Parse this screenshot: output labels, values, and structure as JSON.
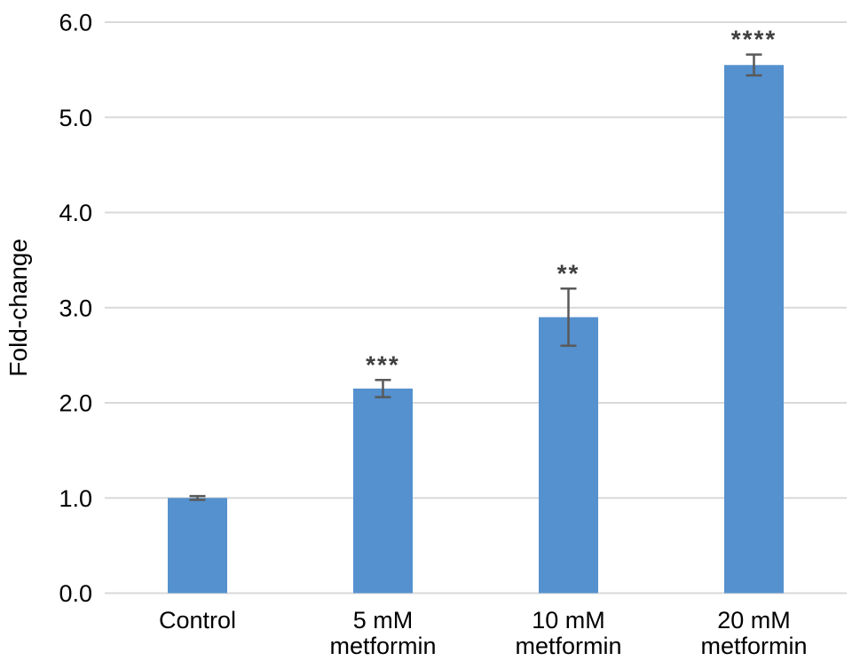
{
  "figure": {
    "background": "#ffffff"
  },
  "chart_data": {
    "type": "bar",
    "title": "",
    "xlabel": "",
    "ylabel": "Fold-change",
    "categories": [
      "Control",
      "5 mM\nmetformin",
      "10 mM\nmetformin",
      "20 mM\nmetformin"
    ],
    "values": [
      1.0,
      2.15,
      2.9,
      5.55
    ],
    "error_bars": [
      0.02,
      0.09,
      0.3,
      0.11
    ],
    "significance": [
      "",
      "***",
      "**",
      "****"
    ],
    "ylim": [
      0.0,
      6.0
    ],
    "ytick_step": 1.0,
    "ytick_labels": [
      "0.0",
      "1.0",
      "2.0",
      "3.0",
      "4.0",
      "5.0",
      "6.0"
    ],
    "grid": "horizontal",
    "legend": "none",
    "colors": {
      "bar": "#5491CE",
      "gridline": "#D9D9D9",
      "error_bar": "#595959",
      "significance": "#404040",
      "text": "#000000"
    }
  }
}
